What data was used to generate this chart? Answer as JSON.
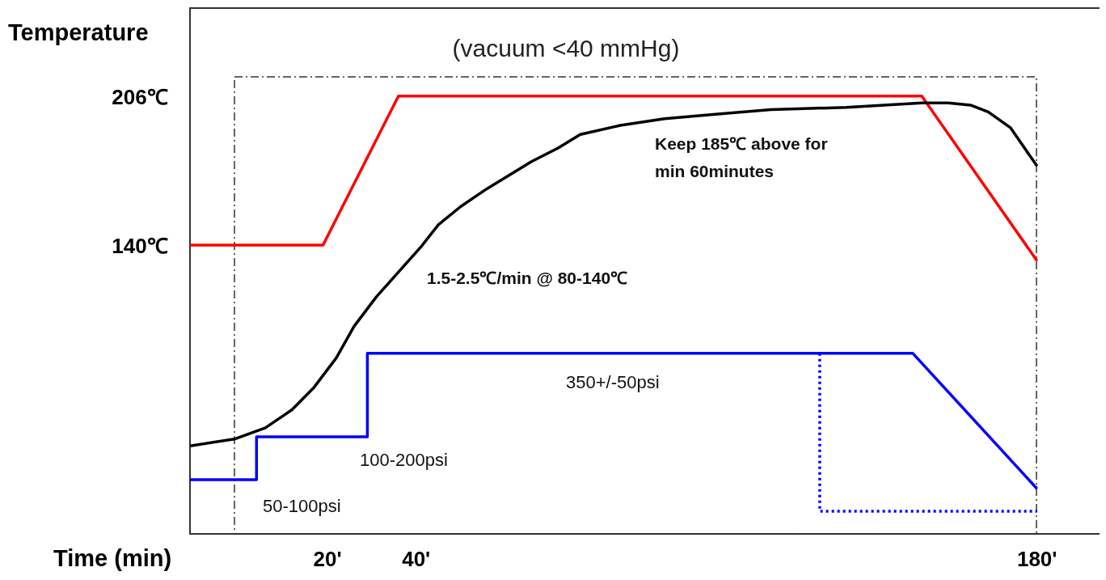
{
  "chart_data": {
    "type": "line",
    "xlabel": "Time (min)",
    "ylabel": "Temperature",
    "xlim": [
      -11,
      195
    ],
    "ylim": [
      12,
      245
    ],
    "xticks": [
      {
        "value": 20,
        "label": "20'"
      },
      {
        "value": 40,
        "label": "40'"
      },
      {
        "value": 180,
        "label": "180'"
      }
    ],
    "yticks": [
      {
        "value": 206,
        "label": "206℃"
      },
      {
        "value": 140,
        "label": "140℃"
      }
    ],
    "title": "(vacuum <40 mmHg)",
    "grid": false,
    "marker": "none",
    "series": [
      {
        "color": "#ff0000",
        "line_style": "solid",
        "x": [
          -11,
          19,
          36,
          154,
          180
        ],
        "values": [
          140,
          140,
          206,
          206,
          133
        ]
      },
      {
        "color": "#000000",
        "line_style": "solid",
        "x": [
          -11,
          -1,
          6,
          12,
          17,
          22,
          26,
          31,
          36,
          41,
          45,
          50,
          56,
          61,
          66,
          72,
          77,
          86,
          96,
          108,
          120,
          137,
          154,
          160,
          165,
          169,
          174,
          180
        ],
        "values": [
          51,
          54,
          59,
          67,
          77,
          90,
          104,
          117,
          128,
          139,
          149,
          157,
          165,
          171,
          177,
          183,
          189,
          193,
          196,
          198,
          200,
          201,
          203,
          203,
          202,
          199,
          192,
          175
        ]
      },
      {
        "color": "#0000ff",
        "line_style": "solid",
        "x": [
          -11,
          4,
          4,
          29,
          29,
          152,
          180
        ],
        "values": [
          36,
          36,
          55,
          55,
          92,
          92,
          32
        ]
      },
      {
        "color": "#0000ff",
        "line_style": "dotted",
        "x": [
          131,
          131,
          180
        ],
        "values": [
          92,
          22,
          22
        ]
      }
    ],
    "annotations": [
      "Keep 185℃ above for\nmin 60minutes",
      "1.5-2.5℃/min @ 80-140℃",
      "350+/-50psi",
      "100-200psi",
      "50-100psi"
    ]
  }
}
